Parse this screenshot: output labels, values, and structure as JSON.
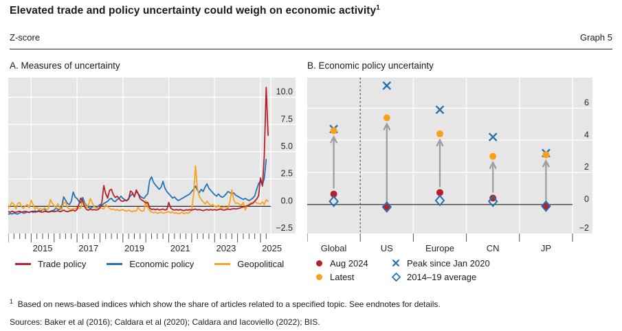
{
  "header": {
    "title": "Elevated trade and policy uncertainty could weigh on economic activity",
    "title_superscript": "1",
    "unit_label": "Z-score",
    "graph_label": "Graph 5"
  },
  "footnote": {
    "marker": "1",
    "text": "Based on news-based indices which show the share of articles related to a specified topic. See endnotes for details."
  },
  "sources": "Sources: Baker et al (2016); Caldara et al (2020); Caldara and Iacoviello (2022); BIS.",
  "palette": {
    "panel_bg": "#e6e6e6",
    "grid_line": "#ffffff",
    "zero_line": "#000000",
    "tick": "#4d4d4d",
    "text": "#262626",
    "arrow": "#9e9e9e",
    "separator_dash": "#404040"
  },
  "chart_data": [
    {
      "type": "line",
      "title": "A. Measures of uncertainty",
      "ylabel": "Z-score",
      "xlim": [
        2014.0,
        2025.45
      ],
      "ylim": [
        -2.5,
        11.8
      ],
      "yticks": [
        -2.5,
        0,
        2.5,
        5,
        7.5,
        10
      ],
      "x_gridline_years": [
        2015,
        2017,
        2019,
        2021,
        2023,
        2025
      ],
      "xticklabels": [
        2015,
        2017,
        2019,
        2021,
        2023,
        2025
      ],
      "x_start": 2014.0,
      "x_step_months": 1,
      "grid": "on",
      "legend_position": "below",
      "series": [
        {
          "name": "Trade policy",
          "color": "#b5202c",
          "values": [
            -0.5,
            -0.55,
            -0.45,
            -0.52,
            -0.55,
            -0.5,
            -0.46,
            -0.54,
            -0.5,
            -0.46,
            -0.52,
            -0.55,
            -0.5,
            -0.45,
            -0.55,
            -0.5,
            -0.46,
            -0.52,
            -0.55,
            -0.46,
            -0.5,
            -0.54,
            -0.5,
            -0.46,
            -0.5,
            -0.46,
            -0.42,
            -0.5,
            -0.45,
            -0.36,
            -0.46,
            -0.5,
            -0.44,
            -0.4,
            -0.36,
            -0.45,
            -0.3,
            0.2,
            0.75,
            0.45,
            -0.05,
            -0.3,
            -0.36,
            -0.26,
            -0.34,
            -0.3,
            -0.35,
            -0.3,
            -0.15,
            0.35,
            1.9,
            1.15,
            0.75,
            1.45,
            1.55,
            1.05,
            0.8,
            0.92,
            0.7,
            0.5,
            0.45,
            0.55,
            0.5,
            0.65,
            1.4,
            1.25,
            0.85,
            1.5,
            1.15,
            0.7,
            0.55,
            0.45,
            0.3,
            0.35,
            -0.15,
            -0.3,
            -0.26,
            -0.32,
            -0.26,
            -0.34,
            -0.3,
            -0.26,
            -0.34,
            -0.3,
            0.35,
            -0.15,
            -0.3,
            -0.35,
            -0.3,
            -0.36,
            -0.3,
            -0.36,
            -0.4,
            -0.32,
            -0.36,
            -0.3,
            -0.36,
            -0.3,
            -0.26,
            -0.34,
            -0.3,
            -0.36,
            -0.4,
            -0.34,
            -0.3,
            -0.36,
            -0.3,
            -0.35,
            -0.3,
            -0.36,
            -0.3,
            -0.26,
            -0.32,
            -0.36,
            -0.3,
            -0.26,
            -0.3,
            -0.26,
            -0.22,
            -0.26,
            -0.22,
            -0.18,
            -0.12,
            -0.06,
            -0.02,
            0.04,
            0.1,
            0.2,
            0.3,
            0.46,
            0.66,
            0.95,
            2.6,
            1.85,
            4.6,
            10.9,
            6.5
          ]
        },
        {
          "name": "Economic policy",
          "color": "#2271b3",
          "values": [
            -0.75,
            -0.66,
            -0.72,
            -0.62,
            -0.68,
            -0.72,
            -0.6,
            -0.55,
            -0.65,
            -0.6,
            -0.52,
            -0.58,
            -0.48,
            -0.56,
            -0.42,
            -0.5,
            -0.38,
            -0.46,
            -0.3,
            -0.26,
            -0.46,
            -0.52,
            -0.46,
            -0.4,
            -0.36,
            -0.16,
            -0.3,
            -0.28,
            -0.06,
            0.85,
            0.55,
            0.25,
            0.15,
            0.45,
            1.3,
            0.85,
            0.7,
            0.45,
            0.3,
            0.8,
            0.3,
            0.05,
            -0.12,
            -0.18,
            -0.08,
            0.02,
            -0.1,
            -0.02,
            0.15,
            0.05,
            0.25,
            0.35,
            0.45,
            0.65,
            0.72,
            0.5,
            0.42,
            0.62,
            0.72,
            0.92,
            0.72,
            0.6,
            0.52,
            0.72,
            0.95,
            1.15,
            0.9,
            1.35,
            1.15,
            0.92,
            0.8,
            0.72,
            0.95,
            1.15,
            2.35,
            2.7,
            2.2,
            1.95,
            1.75,
            1.55,
            1.75,
            2.28,
            1.65,
            1.35,
            1.15,
            0.95,
            0.75,
            0.85,
            0.65,
            0.52,
            0.62,
            0.72,
            0.82,
            0.92,
            1.02,
            1.12,
            1.35,
            1.55,
            1.85,
            1.45,
            1.25,
            1.55,
            1.35,
            1.75,
            2.05,
            1.65,
            1.45,
            1.25,
            1.05,
            0.92,
            1.12,
            0.92,
            0.82,
            0.92,
            1.12,
            1.35,
            1.25,
            1.12,
            1.22,
            1.02,
            0.92,
            0.82,
            0.72,
            0.62,
            0.72,
            0.62,
            0.52,
            0.62,
            0.75,
            0.95,
            1.55,
            2.05,
            2.35,
            1.95,
            2.55,
            4.3
          ]
        },
        {
          "name": "Geopolitical",
          "color": "#f9a11b",
          "values": [
            -0.2,
            0.1,
            0.35,
            0.15,
            -0.25,
            0.25,
            0.35,
            -0.05,
            -0.2,
            0.05,
            0.15,
            -0.15,
            0.55,
            0.15,
            -0.25,
            -0.1,
            -0.3,
            -0.2,
            -0.35,
            -0.15,
            -0.3,
            -0.25,
            0.6,
            0.3,
            0.05,
            -0.15,
            0.25,
            -0.2,
            -0.3,
            0.3,
            0.4,
            -0.1,
            -0.25,
            -0.3,
            -0.2,
            -0.25,
            -0.1,
            -0.2,
            -0.15,
            0.5,
            0.2,
            -0.1,
            0.15,
            0.7,
            0.3,
            -0.05,
            -0.15,
            -0.2,
            -0.1,
            -0.2,
            -0.25,
            0.15,
            -0.05,
            -0.2,
            -0.3,
            -0.25,
            -0.35,
            -0.3,
            -0.4,
            -0.35,
            -0.3,
            -0.4,
            -0.45,
            -0.35,
            -0.45,
            -0.5,
            -0.4,
            -0.45,
            -0.1,
            -0.35,
            -0.45,
            -0.4,
            0.5,
            -0.1,
            -0.4,
            -0.55,
            -0.6,
            -0.55,
            -0.65,
            -0.6,
            -0.55,
            -0.65,
            -0.6,
            -0.55,
            -0.5,
            -0.6,
            -0.55,
            -0.65,
            -0.6,
            -0.7,
            -0.65,
            -0.55,
            -0.7,
            -0.6,
            -0.65,
            -0.55,
            -0.35,
            1.1,
            3.7,
            1.6,
            0.9,
            0.6,
            0.4,
            0.2,
            0.45,
            0.25,
            0.05,
            0.15,
            0.0,
            -0.1,
            0.1,
            -0.1,
            -0.15,
            -0.05,
            -0.12,
            -0.18,
            0.4,
            1.5,
            0.6,
            0.25,
            0.3,
            0.18,
            0.08,
            0.35,
            -0.35,
            0.05,
            0.18,
            0.32,
            0.22,
            0.45,
            0.3,
            0.25,
            0.2,
            0.4,
            0.15,
            0.6,
            0.45
          ]
        }
      ]
    },
    {
      "type": "scatter",
      "title": "B. Economic policy uncertainty",
      "categories": [
        "Global",
        "US",
        "Europe",
        "CN",
        "JP"
      ],
      "ylim": [
        -1.8,
        7.9
      ],
      "yticks": [
        -2,
        0,
        2,
        4,
        6
      ],
      "separator_after_category": "Global",
      "arrows": {
        "from": "Aug 2024",
        "to": "Latest"
      },
      "legend_position": "below",
      "series": [
        {
          "name": "Aug 2024",
          "marker": "dot",
          "color": "#b5202c",
          "values": [
            0.65,
            -0.15,
            0.75,
            0.4,
            -0.1
          ]
        },
        {
          "name": "Latest",
          "marker": "dot",
          "color": "#f9a11b",
          "values": [
            4.6,
            5.4,
            4.4,
            3.0,
            3.1
          ]
        },
        {
          "name": "Peak since Jan 2020",
          "marker": "x",
          "color": "#2271b3",
          "values": [
            4.7,
            7.4,
            5.9,
            4.2,
            3.2
          ]
        },
        {
          "name": "2014–19 average",
          "marker": "diamond",
          "color": "#2271b3",
          "values": [
            0.2,
            -0.15,
            0.25,
            0.2,
            -0.1
          ]
        }
      ]
    }
  ]
}
